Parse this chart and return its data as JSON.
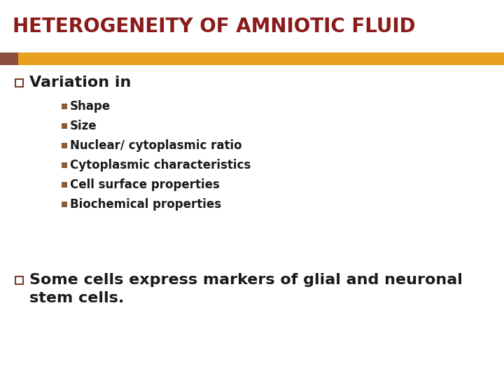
{
  "title": "HETEROGENEITY OF AMNIOTIC FLUID",
  "title_color": "#8B1A1A",
  "title_fontsize": 20,
  "title_fontweight": "bold",
  "bg_color": "#FFFFFF",
  "header_bar_color": "#E8A020",
  "header_bar_left_color": "#8B5040",
  "bullet1_text": "Variation in",
  "bullet1_color": "#1a1a1a",
  "bullet1_fontsize": 16,
  "bullet1_fontweight": "bold",
  "subbullets": [
    "Shape",
    "Size",
    "Nuclear/ cytoplasmic ratio",
    "Cytoplasmic characteristics",
    "Cell surface properties",
    "Biochemical properties"
  ],
  "subbullet_color": "#1a1a1a",
  "subbullet_fontsize": 12,
  "subbullet_fontweight": "bold",
  "subbullet_marker_color": "#8B5B35",
  "bullet2_line1": "Some cells express markers of glial and neuronal",
  "bullet2_line2": "stem cells.",
  "bullet2_color": "#1a1a1a",
  "bullet2_fontsize": 16,
  "bullet2_fontweight": "bold",
  "bullet_marker_color": "#7B3B2A",
  "hollow_bullet_color": "#7B3B2A"
}
